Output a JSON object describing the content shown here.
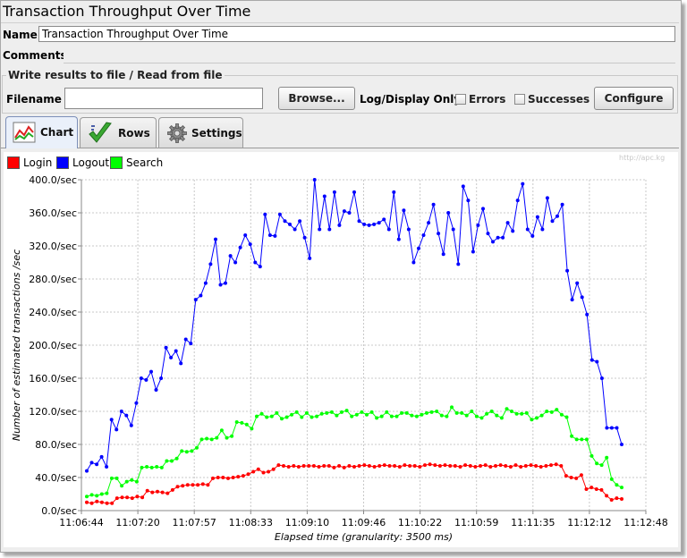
{
  "window": {
    "title": "Transaction Throughput Over Time"
  },
  "form": {
    "name_label": "Name:",
    "name_value": "Transaction Throughput Over Time",
    "comments_label": "Comments:",
    "group_title": "Write results to file / Read from file",
    "filename_label": "Filename",
    "filename_value": "",
    "browse_label": "Browse...",
    "log_display_label": "Log/Display Only:",
    "errors_label": "Errors",
    "errors_checked": false,
    "successes_label": "Successes",
    "successes_checked": false,
    "configure_label": "Configure"
  },
  "tabs": [
    {
      "label": "Chart",
      "icon": "chart-icon",
      "active": true
    },
    {
      "label": "Rows",
      "icon": "checkmark-icon",
      "active": false
    },
    {
      "label": "Settings",
      "icon": "gear-icon",
      "active": false
    }
  ],
  "watermark": "http://apc.kg",
  "chart_data": {
    "type": "line",
    "xlabel": "Elapsed time (granularity: 3500 ms)",
    "ylabel": "Number of estimated transactions /sec",
    "ylim": [
      0,
      400
    ],
    "yticks": [
      "0.0/sec",
      "40.0/sec",
      "80.0/sec",
      "120.0/sec",
      "160.0/sec",
      "200.0/sec",
      "240.0/sec",
      "280.0/sec",
      "320.0/sec",
      "360.0/sec",
      "400.0/sec"
    ],
    "xticks": [
      "11:06:44",
      "11:07:20",
      "11:07:57",
      "11:08:33",
      "11:09:10",
      "11:09:46",
      "11:10:22",
      "11:10:59",
      "11:11:35",
      "11:12:12",
      "11:12:48"
    ],
    "grid": true,
    "legend_position": "top-left",
    "series": [
      {
        "name": "Login",
        "color": "#ff0000",
        "values": [
          10,
          9,
          11,
          10,
          9,
          9,
          15,
          16,
          16,
          15,
          17,
          16,
          24,
          22,
          23,
          22,
          21,
          25,
          29,
          30,
          31,
          31,
          31,
          32,
          31,
          39,
          40,
          40,
          39,
          40,
          41,
          42,
          44,
          47,
          50,
          46,
          47,
          50,
          55,
          54,
          53,
          54,
          53,
          54,
          54,
          54,
          53,
          54,
          54,
          52,
          54,
          52,
          54,
          53,
          54,
          55,
          54,
          53,
          54,
          55,
          54,
          54,
          53,
          55,
          54,
          54,
          53,
          55,
          56,
          55,
          54,
          55,
          54,
          54,
          53,
          55,
          54,
          53,
          54,
          55,
          53,
          54,
          55,
          54,
          53,
          55,
          53,
          54,
          55,
          54,
          53,
          54,
          55,
          56,
          54,
          42,
          40,
          39,
          43,
          26,
          28,
          26,
          25,
          18,
          13,
          15,
          14
        ]
      },
      {
        "name": "Logout",
        "color": "#0000ff",
        "values": [
          48,
          58,
          56,
          65,
          53,
          110,
          98,
          120,
          115,
          103,
          130,
          160,
          158,
          168,
          146,
          160,
          197,
          185,
          193,
          178,
          207,
          202,
          255,
          260,
          275,
          298,
          328,
          273,
          275,
          308,
          300,
          318,
          333,
          322,
          300,
          295,
          358,
          333,
          332,
          358,
          350,
          346,
          340,
          350,
          330,
          305,
          400,
          340,
          380,
          340,
          385,
          345,
          362,
          360,
          385,
          350,
          346,
          345,
          346,
          348,
          352,
          340,
          385,
          328,
          363,
          340,
          300,
          317,
          333,
          348,
          370,
          335,
          310,
          360,
          340,
          298,
          392,
          375,
          313,
          345,
          365,
          335,
          325,
          330,
          330,
          348,
          338,
          375,
          395,
          340,
          332,
          355,
          340,
          378,
          350,
          356,
          370,
          290,
          255,
          275,
          258,
          237,
          182,
          180,
          160,
          100,
          100,
          100,
          80
        ]
      },
      {
        "name": "Search",
        "color": "#00ff00",
        "values": [
          17,
          19,
          18,
          20,
          21,
          39,
          39,
          30,
          35,
          37,
          35,
          52,
          53,
          52,
          53,
          52,
          60,
          60,
          63,
          72,
          71,
          72,
          76,
          86,
          87,
          86,
          88,
          97,
          88,
          90,
          107,
          106,
          104,
          99,
          114,
          117,
          113,
          114,
          118,
          111,
          113,
          116,
          119,
          113,
          118,
          113,
          114,
          117,
          118,
          119,
          115,
          119,
          121,
          114,
          116,
          119,
          116,
          119,
          112,
          114,
          119,
          114,
          114,
          118,
          118,
          115,
          114,
          116,
          118,
          119,
          120,
          115,
          114,
          125,
          118,
          118,
          115,
          120,
          114,
          112,
          117,
          120,
          115,
          112,
          123,
          120,
          117,
          117,
          118,
          110,
          112,
          115,
          120,
          119,
          122,
          116,
          113,
          90,
          86,
          86,
          86,
          66,
          57,
          55,
          64,
          38,
          31,
          28
        ]
      }
    ]
  }
}
